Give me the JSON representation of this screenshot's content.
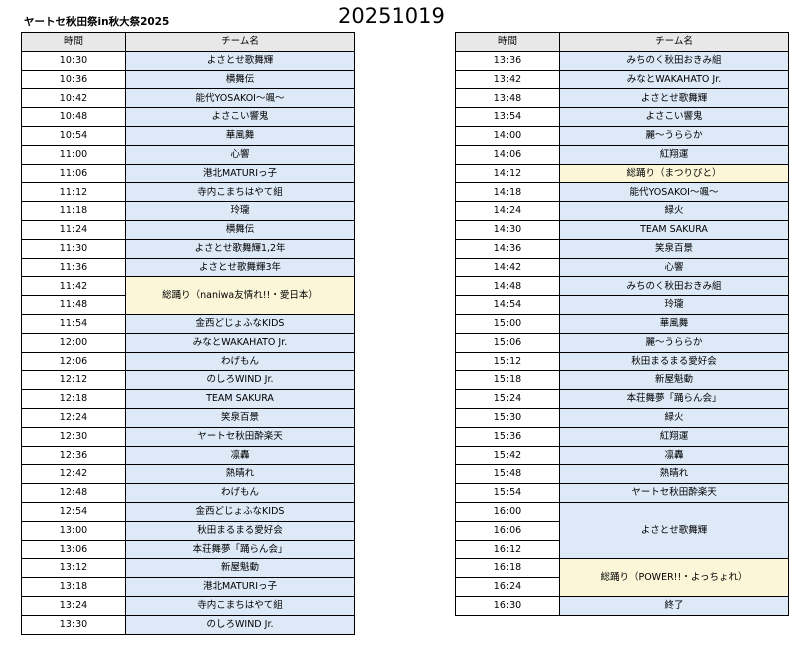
{
  "title": "ヤートセ秋田祭in秋大祭2025",
  "date": "20251019",
  "headers": {
    "time": "時間",
    "team": "チーム名"
  },
  "left": [
    {
      "time": "10:30",
      "team": "よさとせ歌舞輝"
    },
    {
      "time": "10:36",
      "team": "横舞伝"
    },
    {
      "time": "10:42",
      "team": "能代YOSAKOI～颯～"
    },
    {
      "time": "10:48",
      "team": "よさこい響鬼"
    },
    {
      "time": "10:54",
      "team": "華風舞"
    },
    {
      "time": "11:00",
      "team": "心響"
    },
    {
      "time": "11:06",
      "team": "港北MATURIっ子"
    },
    {
      "time": "11:12",
      "team": "寺内こまちはやて組"
    },
    {
      "time": "11:18",
      "team": "玲瓏"
    },
    {
      "time": "11:24",
      "team": "横舞伝"
    },
    {
      "time": "11:30",
      "team": "よさとせ歌舞輝1,2年"
    },
    {
      "time": "11:36",
      "team": "よさとせ歌舞輝3年"
    },
    {
      "time": "11:42",
      "team": "総踊り（naniwa友情れ!!・愛日本）",
      "span": 2,
      "so": true
    },
    {
      "time": "11:48"
    },
    {
      "time": "11:54",
      "team": "金西どじょふなKIDS"
    },
    {
      "time": "12:00",
      "team": "みなとWAKAHATO Jr."
    },
    {
      "time": "12:06",
      "team": "わげもん"
    },
    {
      "time": "12:12",
      "team": "のしろWIND Jr."
    },
    {
      "time": "12:18",
      "team": "TEAM SAKURA"
    },
    {
      "time": "12:24",
      "team": "笑泉百景"
    },
    {
      "time": "12:30",
      "team": "ヤートセ秋田酔楽天"
    },
    {
      "time": "12:36",
      "team": "凛轟"
    },
    {
      "time": "12:42",
      "team": "熱晴れ"
    },
    {
      "time": "12:48",
      "team": "わげもん"
    },
    {
      "time": "12:54",
      "team": "金西どじょふなKIDS"
    },
    {
      "time": "13:00",
      "team": "秋田まるまる愛好会"
    },
    {
      "time": "13:06",
      "team": "本荘舞夢「踊らん会」"
    },
    {
      "time": "13:12",
      "team": "新屋魁動"
    },
    {
      "time": "13:18",
      "team": "港北MATURIっ子"
    },
    {
      "time": "13:24",
      "team": "寺内こまちはやて組"
    },
    {
      "time": "13:30",
      "team": "のしろWIND Jr."
    }
  ],
  "right": [
    {
      "time": "13:36",
      "team": "みちのく秋田おきみ組"
    },
    {
      "time": "13:42",
      "team": "みなとWAKAHATO Jr."
    },
    {
      "time": "13:48",
      "team": "よさとせ歌舞輝"
    },
    {
      "time": "13:54",
      "team": "よさこい響鬼"
    },
    {
      "time": "14:00",
      "team": "麗～うららか"
    },
    {
      "time": "14:06",
      "team": "紅翔運"
    },
    {
      "time": "14:12",
      "team": "総踊り（まつりびと）",
      "so": true
    },
    {
      "time": "14:18",
      "team": "能代YOSAKOI～颯～"
    },
    {
      "time": "14:24",
      "team": "緑火"
    },
    {
      "time": "14:30",
      "team": "TEAM SAKURA"
    },
    {
      "time": "14:36",
      "team": "笑泉百景"
    },
    {
      "time": "14:42",
      "team": "心響"
    },
    {
      "time": "14:48",
      "team": "みちのく秋田おきみ組"
    },
    {
      "time": "14:54",
      "team": "玲瓏"
    },
    {
      "time": "15:00",
      "team": "華風舞"
    },
    {
      "time": "15:06",
      "team": "麗～うららか"
    },
    {
      "time": "15:12",
      "team": "秋田まるまる愛好会"
    },
    {
      "time": "15:18",
      "team": "新屋魁動"
    },
    {
      "time": "15:24",
      "team": "本荘舞夢「踊らん会」"
    },
    {
      "time": "15:30",
      "team": "緑火"
    },
    {
      "time": "15:36",
      "team": "紅翔運"
    },
    {
      "time": "15:42",
      "team": "凛轟"
    },
    {
      "time": "15:48",
      "team": "熱晴れ"
    },
    {
      "time": "15:54",
      "team": "ヤートセ秋田酔楽天"
    },
    {
      "time": "16:00",
      "team": "よさとせ歌舞輝",
      "span": 3
    },
    {
      "time": "16:06"
    },
    {
      "time": "16:12"
    },
    {
      "time": "16:18",
      "team": "総踊り（POWER!!・よっちょれ）",
      "span": 2,
      "so": true
    },
    {
      "time": "16:24"
    },
    {
      "time": "16:30",
      "team": "終了"
    }
  ]
}
